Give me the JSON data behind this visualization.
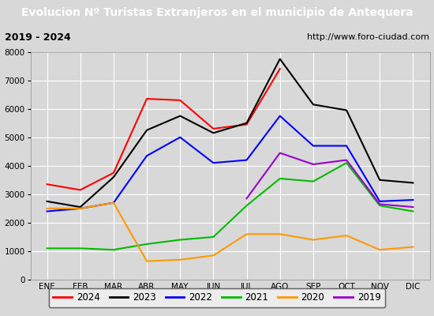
{
  "title": "Evolucion Nº Turistas Extranjeros en el municipio de Antequera",
  "subtitle_left": "2019 - 2024",
  "subtitle_right": "http://www.foro-ciudad.com",
  "months": [
    "ENE",
    "FEB",
    "MAR",
    "ABR",
    "MAY",
    "JUN",
    "JUL",
    "AGO",
    "SEP",
    "OCT",
    "NOV",
    "DIC"
  ],
  "series": {
    "2024": [
      3350,
      3150,
      3750,
      6350,
      6300,
      5300,
      5450,
      7400,
      null,
      null,
      null,
      null
    ],
    "2023": [
      2750,
      2550,
      3600,
      5250,
      5750,
      5150,
      5500,
      7750,
      6150,
      5950,
      3500,
      3400
    ],
    "2022": [
      2400,
      2500,
      2700,
      4350,
      5000,
      4100,
      4200,
      5750,
      4700,
      4700,
      2750,
      2800
    ],
    "2021": [
      1100,
      1100,
      1050,
      1250,
      1400,
      1500,
      2600,
      3550,
      3450,
      4100,
      2600,
      2400
    ],
    "2020": [
      2500,
      2500,
      2700,
      650,
      700,
      850,
      1600,
      1600,
      1400,
      1550,
      1050,
      1150
    ],
    "2019": [
      null,
      null,
      null,
      null,
      null,
      null,
      2850,
      4450,
      4050,
      4200,
      2650,
      2550
    ]
  },
  "colors": {
    "2024": "#ff0000",
    "2023": "#000000",
    "2022": "#0000ff",
    "2021": "#00bb00",
    "2020": "#ff9900",
    "2019": "#9900cc"
  },
  "ylim": [
    0,
    8000
  ],
  "yticks": [
    0,
    1000,
    2000,
    3000,
    4000,
    5000,
    6000,
    7000,
    8000
  ],
  "bg_color": "#d8d8d8",
  "plot_bg_color": "#d8d8d8",
  "title_bg_color": "#5599dd",
  "title_color": "#ffffff",
  "subtitle_bg_color": "#e8e8e8",
  "grid_color": "#ffffff",
  "border_color": "#555555"
}
